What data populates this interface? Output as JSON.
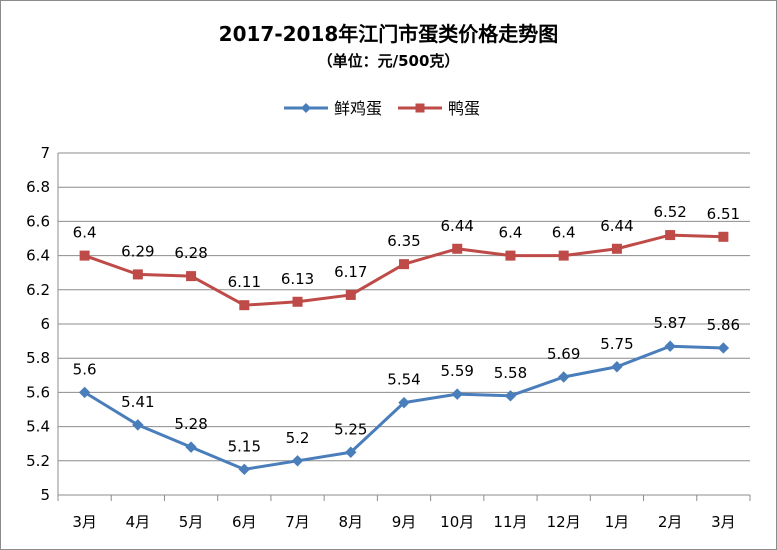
{
  "chart_data": {
    "type": "line",
    "title": "2017-2018年江门市蛋类价格走势图",
    "subtitle": "（单位：元/500克）",
    "xlabel": "",
    "ylabel": "",
    "categories": [
      "3月",
      "4月",
      "5月",
      "6月",
      "7月",
      "8月",
      "9月",
      "10月",
      "11月",
      "12月",
      "1月",
      "2月",
      "3月"
    ],
    "ylim": [
      5,
      7
    ],
    "yticks": [
      "5",
      "5.2",
      "5.4",
      "5.6",
      "5.8",
      "6",
      "6.2",
      "6.4",
      "6.6",
      "6.8",
      "7"
    ],
    "legend_position": "top-center",
    "grid": true,
    "series": [
      {
        "name": "鲜鸡蛋",
        "color": "#4a7ebb",
        "marker": "diamond",
        "values": [
          5.6,
          5.41,
          5.28,
          5.15,
          5.2,
          5.25,
          5.54,
          5.59,
          5.58,
          5.69,
          5.75,
          5.87,
          5.86
        ]
      },
      {
        "name": "鸭蛋",
        "color": "#be4b48",
        "marker": "square",
        "values": [
          6.4,
          6.29,
          6.28,
          6.11,
          6.13,
          6.17,
          6.35,
          6.44,
          6.4,
          6.4,
          6.44,
          6.52,
          6.51
        ]
      }
    ]
  }
}
